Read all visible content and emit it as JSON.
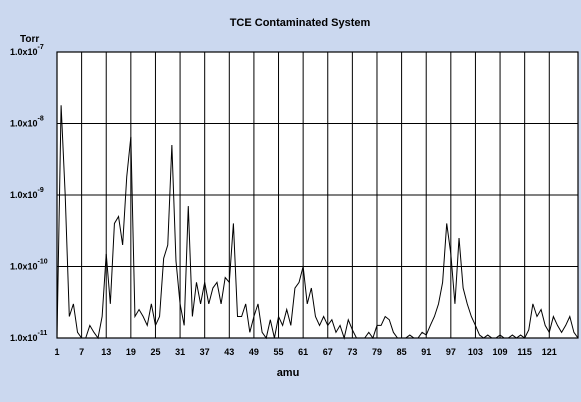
{
  "chart_data": {
    "type": "line",
    "title": "TCE Contaminated System",
    "ylabel": "Torr",
    "xlabel": "amu",
    "log_y": true,
    "grid": true,
    "color": "#000000",
    "ylim": [
      1e-11,
      1e-07
    ],
    "yticks": [
      {
        "value": 1e-07,
        "label": "1.0x10",
        "exponent": "-7"
      },
      {
        "value": 1e-08,
        "label": "1.0x10",
        "exponent": "-8"
      },
      {
        "value": 1e-09,
        "label": "1.0x10",
        "exponent": "-9"
      },
      {
        "value": 1e-10,
        "label": "1.0x10",
        "exponent": "-10"
      },
      {
        "value": 1e-11,
        "label": "1.0x10",
        "exponent": "-11"
      }
    ],
    "xlim": [
      1,
      128
    ],
    "xticks": [
      1,
      7,
      13,
      19,
      25,
      31,
      37,
      43,
      49,
      55,
      61,
      67,
      73,
      79,
      85,
      91,
      97,
      103,
      109,
      115,
      121
    ],
    "x": [
      1,
      2,
      3,
      4,
      5,
      6,
      7,
      8,
      9,
      10,
      11,
      12,
      13,
      14,
      15,
      16,
      17,
      18,
      19,
      20,
      21,
      22,
      23,
      24,
      25,
      26,
      27,
      28,
      29,
      30,
      31,
      32,
      33,
      34,
      35,
      36,
      37,
      38,
      39,
      40,
      41,
      42,
      43,
      44,
      45,
      46,
      47,
      48,
      49,
      50,
      51,
      52,
      53,
      54,
      55,
      56,
      57,
      58,
      59,
      60,
      61,
      62,
      63,
      64,
      65,
      66,
      67,
      68,
      69,
      70,
      71,
      72,
      73,
      74,
      75,
      76,
      77,
      78,
      79,
      80,
      81,
      82,
      83,
      84,
      85,
      86,
      87,
      88,
      89,
      90,
      91,
      92,
      93,
      94,
      95,
      96,
      97,
      98,
      99,
      100,
      101,
      102,
      103,
      104,
      105,
      106,
      107,
      108,
      109,
      110,
      111,
      112,
      113,
      114,
      115,
      116,
      117,
      118,
      119,
      120,
      121,
      122,
      123,
      124,
      125,
      126,
      127,
      128
    ],
    "values": [
      1e-11,
      1.8e-08,
      1e-09,
      2e-11,
      3e-11,
      1.2e-11,
      1e-11,
      1e-11,
      1.5e-11,
      1.2e-11,
      1e-11,
      2e-11,
      1.5e-10,
      3e-11,
      4e-10,
      5e-10,
      2e-10,
      1.8e-09,
      6.5e-09,
      2e-11,
      2.5e-11,
      2e-11,
      1.5e-11,
      3e-11,
      1.5e-11,
      2e-11,
      1.3e-10,
      2e-10,
      5e-09,
      1.2e-10,
      3e-11,
      1.5e-11,
      7e-10,
      2e-11,
      6e-11,
      3e-11,
      6e-11,
      3e-11,
      5e-11,
      6e-11,
      3e-11,
      7e-11,
      6e-11,
      4e-10,
      2e-11,
      2e-11,
      3e-11,
      1.2e-11,
      2e-11,
      3e-11,
      1.2e-11,
      1e-11,
      1.8e-11,
      1e-11,
      2e-11,
      1.5e-11,
      2.5e-11,
      1.5e-11,
      5e-11,
      6e-11,
      1e-10,
      3e-11,
      5e-11,
      2e-11,
      1.5e-11,
      2e-11,
      1.5e-11,
      1.8e-11,
      1.2e-11,
      1.5e-11,
      1e-11,
      1.8e-11,
      1.3e-11,
      1e-11,
      1e-11,
      1e-11,
      1.2e-11,
      1e-11,
      1.5e-11,
      1.5e-11,
      2e-11,
      1.8e-11,
      1.2e-11,
      1e-11,
      1e-11,
      1e-11,
      1.1e-11,
      1e-11,
      1e-11,
      1.2e-11,
      1.1e-11,
      1.5e-11,
      2e-11,
      3e-11,
      6e-11,
      4e-10,
      1.5e-10,
      3e-11,
      2.5e-10,
      5e-11,
      3e-11,
      2e-11,
      1.5e-11,
      1.1e-11,
      1e-11,
      1.1e-11,
      1e-11,
      1e-11,
      1.1e-11,
      1e-11,
      1e-11,
      1.1e-11,
      1e-11,
      1.1e-11,
      1e-11,
      1.3e-11,
      3e-11,
      2e-11,
      2.5e-11,
      1.5e-11,
      1.2e-11,
      2e-11,
      1.5e-11,
      1.2e-11,
      1.5e-11,
      2e-11,
      1.2e-11,
      1e-11
    ]
  }
}
